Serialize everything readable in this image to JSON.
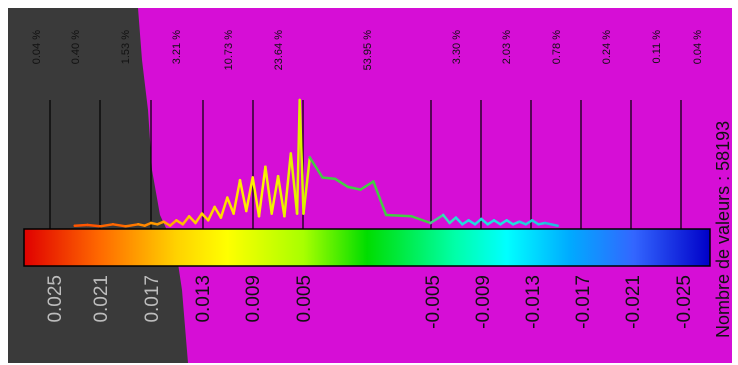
{
  "chart_data": {
    "type": "histogram",
    "title": "",
    "colors": {
      "background": "#d60ed6",
      "shadow": "#3a3a3a",
      "class_lines": "#000000"
    },
    "class_percentages": [
      "0.04 %",
      "0.40 %",
      "1.53 %",
      "3.21 %",
      "10.73 %",
      "23.64 %",
      "53.95 %",
      "3.30 %",
      "2.03 %",
      "0.78 %",
      "0.24 %",
      "0.11 %",
      "0.04 %"
    ],
    "colorbar_ticks": [
      {
        "label": "0.025",
        "value": 0.025
      },
      {
        "label": "0.021",
        "value": 0.021
      },
      {
        "label": "0.017",
        "value": 0.017
      },
      {
        "label": "0.013",
        "value": 0.013
      },
      {
        "label": "0.009",
        "value": 0.009
      },
      {
        "label": "0.005",
        "value": 0.005
      },
      {
        "label": "-0.005",
        "value": -0.005
      },
      {
        "label": "-0.009",
        "value": -0.009
      },
      {
        "label": "-0.013",
        "value": -0.013
      },
      {
        "label": "-0.017",
        "value": -0.017
      },
      {
        "label": "-0.021",
        "value": -0.021
      },
      {
        "label": "-0.025",
        "value": -0.025
      }
    ],
    "colorbar_stops": [
      {
        "value": 0.027,
        "color": "#e00000"
      },
      {
        "value": 0.021,
        "color": "#ff6a00"
      },
      {
        "value": 0.015,
        "color": "#ffd200"
      },
      {
        "value": 0.011,
        "color": "#ffff00"
      },
      {
        "value": 0.005,
        "color": "#a8ff00"
      },
      {
        "value": 0.0,
        "color": "#00dd00"
      },
      {
        "value": -0.007,
        "color": "#00ffaa"
      },
      {
        "value": -0.011,
        "color": "#00ffff"
      },
      {
        "value": -0.016,
        "color": "#00aaff"
      },
      {
        "value": -0.021,
        "color": "#3366ff"
      },
      {
        "value": -0.027,
        "color": "#0000c8"
      }
    ],
    "value_count_label": "Nombre de valeurs : 58193",
    "histogram": [
      {
        "x": 0.023,
        "y": 0.01,
        "color": "#ff5500"
      },
      {
        "x": 0.022,
        "y": 0.015,
        "color": "#ff5500"
      },
      {
        "x": 0.021,
        "y": 0.005,
        "color": "#ff6600"
      },
      {
        "x": 0.02,
        "y": 0.02,
        "color": "#ff6600"
      },
      {
        "x": 0.019,
        "y": 0.005,
        "color": "#ff7700"
      },
      {
        "x": 0.018,
        "y": 0.02,
        "color": "#ff8800"
      },
      {
        "x": 0.0175,
        "y": 0.01,
        "color": "#ff8800"
      },
      {
        "x": 0.017,
        "y": 0.03,
        "color": "#ff9900"
      },
      {
        "x": 0.0165,
        "y": 0.02,
        "color": "#ff9900"
      },
      {
        "x": 0.016,
        "y": 0.04,
        "color": "#ffaa00"
      },
      {
        "x": 0.0155,
        "y": 0.01,
        "color": "#ffaa00"
      },
      {
        "x": 0.015,
        "y": 0.05,
        "color": "#ffbb00"
      },
      {
        "x": 0.0145,
        "y": 0.02,
        "color": "#ffbb00"
      },
      {
        "x": 0.014,
        "y": 0.08,
        "color": "#ffcc00"
      },
      {
        "x": 0.0135,
        "y": 0.03,
        "color": "#ffcc00"
      },
      {
        "x": 0.013,
        "y": 0.1,
        "color": "#ffd400"
      },
      {
        "x": 0.0125,
        "y": 0.05,
        "color": "#ffd400"
      },
      {
        "x": 0.012,
        "y": 0.15,
        "color": "#ffdc00"
      },
      {
        "x": 0.0115,
        "y": 0.07,
        "color": "#ffdc00"
      },
      {
        "x": 0.011,
        "y": 0.22,
        "color": "#ffe400"
      },
      {
        "x": 0.0105,
        "y": 0.1,
        "color": "#ffe400"
      },
      {
        "x": 0.01,
        "y": 0.35,
        "color": "#ffec00"
      },
      {
        "x": 0.0095,
        "y": 0.12,
        "color": "#ffec00"
      },
      {
        "x": 0.009,
        "y": 0.37,
        "color": "#fff200"
      },
      {
        "x": 0.0085,
        "y": 0.08,
        "color": "#fff200"
      },
      {
        "x": 0.008,
        "y": 0.45,
        "color": "#f2f000"
      },
      {
        "x": 0.0075,
        "y": 0.1,
        "color": "#f2f000"
      },
      {
        "x": 0.007,
        "y": 0.38,
        "color": "#eef000"
      },
      {
        "x": 0.0065,
        "y": 0.08,
        "color": "#eef000"
      },
      {
        "x": 0.006,
        "y": 0.55,
        "color": "#e4f000"
      },
      {
        "x": 0.0055,
        "y": 0.1,
        "color": "#e4f000"
      },
      {
        "x": 0.0053,
        "y": 0.95,
        "color": "#dcf000"
      },
      {
        "x": 0.005,
        "y": 0.1,
        "color": "#dcf000"
      },
      {
        "x": 0.0045,
        "y": 0.52,
        "color": "#44cc44"
      },
      {
        "x": 0.0035,
        "y": 0.37,
        "color": "#44cc44"
      },
      {
        "x": 0.0025,
        "y": 0.36,
        "color": "#44cc44"
      },
      {
        "x": 0.0015,
        "y": 0.3,
        "color": "#44cc44"
      },
      {
        "x": 0.0005,
        "y": 0.28,
        "color": "#44cc44"
      },
      {
        "x": -0.0005,
        "y": 0.34,
        "color": "#44cc44"
      },
      {
        "x": -0.0015,
        "y": 0.09,
        "color": "#44cc44"
      },
      {
        "x": -0.0035,
        "y": 0.08,
        "color": "#44cc44"
      },
      {
        "x": -0.005,
        "y": 0.03,
        "color": "#44cc88"
      },
      {
        "x": -0.006,
        "y": 0.09,
        "color": "#33ddbb"
      },
      {
        "x": -0.0065,
        "y": 0.03,
        "color": "#33ddbb"
      },
      {
        "x": -0.007,
        "y": 0.07,
        "color": "#22dddd"
      },
      {
        "x": -0.0075,
        "y": 0.02,
        "color": "#22dddd"
      },
      {
        "x": -0.008,
        "y": 0.05,
        "color": "#22dddd"
      },
      {
        "x": -0.0085,
        "y": 0.02,
        "color": "#22dddd"
      },
      {
        "x": -0.009,
        "y": 0.06,
        "color": "#22dddd"
      },
      {
        "x": -0.0095,
        "y": 0.02,
        "color": "#22dddd"
      },
      {
        "x": -0.01,
        "y": 0.05,
        "color": "#22dddd"
      },
      {
        "x": -0.0105,
        "y": 0.02,
        "color": "#22dddd"
      },
      {
        "x": -0.011,
        "y": 0.05,
        "color": "#22dddd"
      },
      {
        "x": -0.0115,
        "y": 0.02,
        "color": "#22dddd"
      },
      {
        "x": -0.012,
        "y": 0.04,
        "color": "#22ccdd"
      },
      {
        "x": -0.0125,
        "y": 0.02,
        "color": "#22ccdd"
      },
      {
        "x": -0.013,
        "y": 0.05,
        "color": "#22ccdd"
      },
      {
        "x": -0.0135,
        "y": 0.02,
        "color": "#22ccdd"
      },
      {
        "x": -0.014,
        "y": 0.03,
        "color": "#22bbdd"
      },
      {
        "x": -0.015,
        "y": 0.01,
        "color": "#22bbdd"
      }
    ]
  }
}
